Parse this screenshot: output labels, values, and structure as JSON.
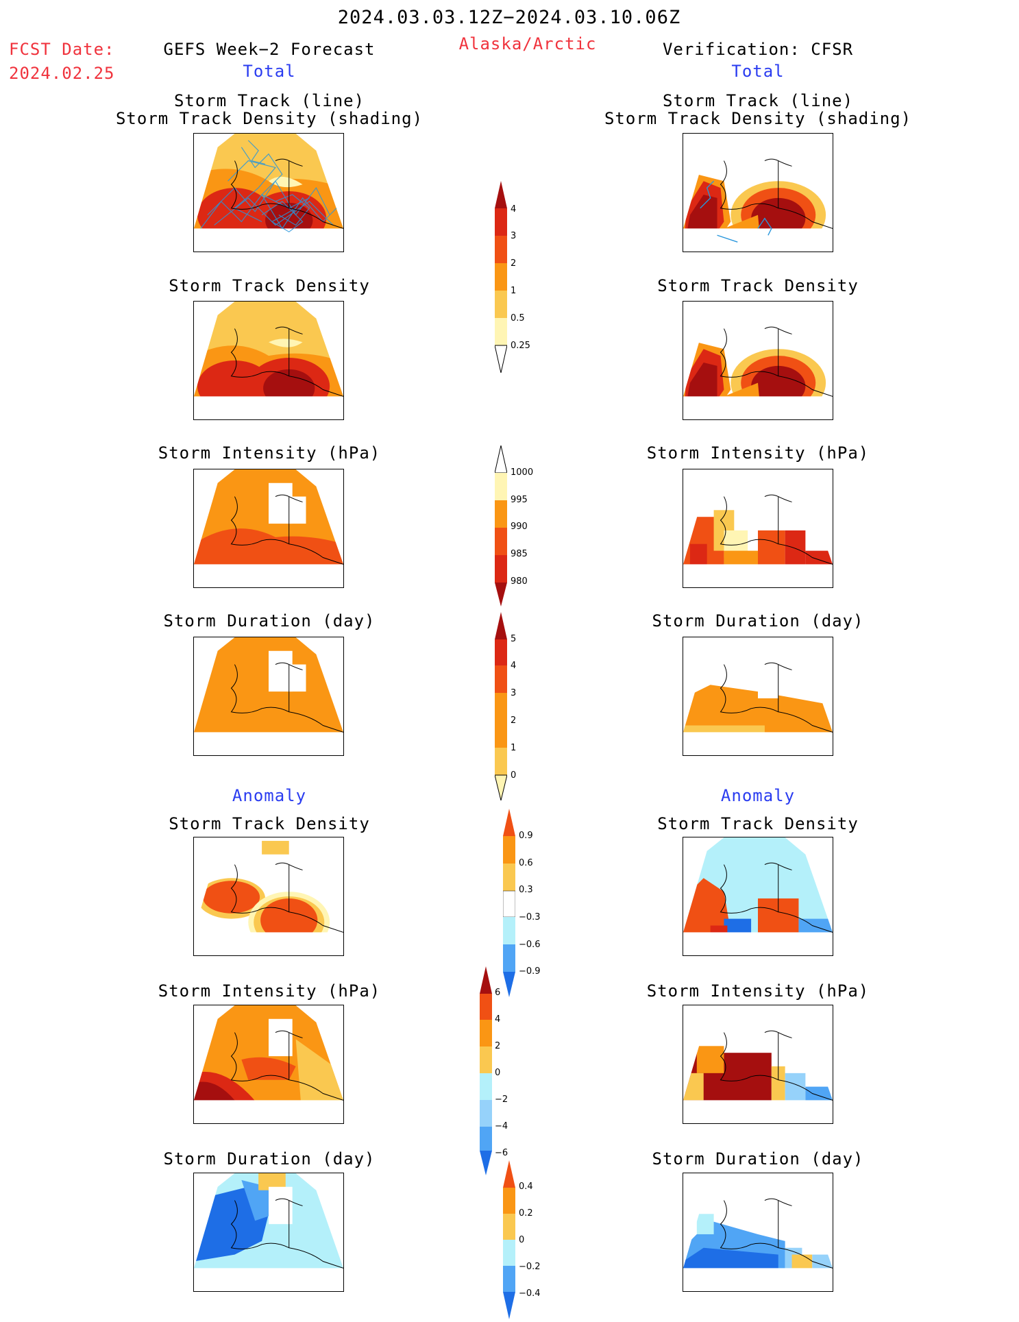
{
  "header": {
    "date_range": "2024.03.03.12Z−2024.03.10.06Z",
    "region": "Alaska/Arctic",
    "fcst_label": "FCST Date:",
    "fcst_date": "2024.02.25",
    "left_title": "GEFS Week−2 Forecast",
    "right_title": "Verification: CFSR",
    "left_section": "Total",
    "right_section": "Total",
    "anomaly_left": "Anomaly",
    "anomaly_right": "Anomaly"
  },
  "panels": {
    "p1_title_a": "Storm Track (line)",
    "p1_title_b": "Storm Track Density (shading)",
    "p2_title": "Storm Track Density",
    "p3_title": "Storm Intensity (hPa)",
    "p4_title": "Storm Duration (day)",
    "p5_title": "Storm Track Density",
    "p6_title": "Storm Intensity (hPa)",
    "p7_title": "Storm Duration (day)"
  },
  "colorbars": {
    "density": [
      "4",
      "3",
      "2",
      "1",
      "0.5",
      "0.25"
    ],
    "intensity": [
      "1000",
      "995",
      "990",
      "985",
      "980"
    ],
    "duration": [
      "5",
      "4",
      "3",
      "2",
      "1",
      "0"
    ],
    "anom_density": [
      "0.9",
      "0.6",
      "0.3",
      "−0.3",
      "−0.6",
      "−0.9"
    ],
    "anom_intensity": [
      "6",
      "4",
      "2",
      "0",
      "−2",
      "−4",
      "−6"
    ],
    "anom_duration": [
      "0.4",
      "0.2",
      "0",
      "−0.2",
      "−0.4"
    ]
  },
  "colors": {
    "title_red": "#f0323c",
    "title_blue": "#2a3cf0",
    "dark_red": "#a50f0f",
    "red": "#dc2814",
    "red_orange": "#f05014",
    "orange": "#fa9614",
    "light_orange": "#fac850",
    "pale_yellow": "#fff5b4",
    "pale_blue": "#b4f0fa",
    "light_blue": "#96d2fa",
    "mid_blue": "#50a5f5",
    "blue": "#1e6ee6",
    "track_line": "#2896dc"
  }
}
